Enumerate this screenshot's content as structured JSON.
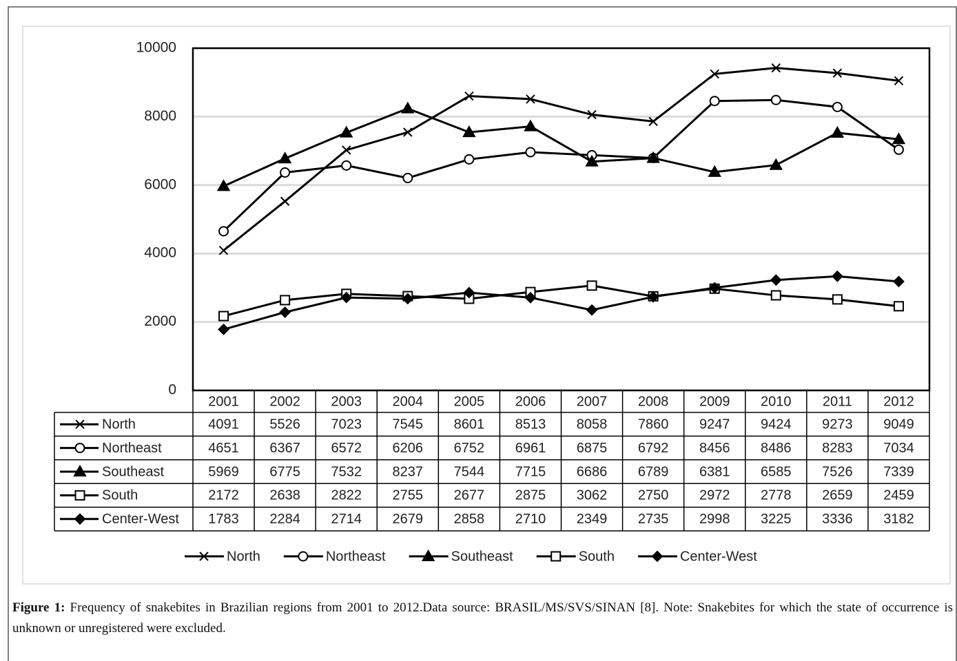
{
  "chart_data": {
    "type": "line",
    "categories": [
      "2001",
      "2002",
      "2003",
      "2004",
      "2005",
      "2006",
      "2007",
      "2008",
      "2009",
      "2010",
      "2011",
      "2012"
    ],
    "series": [
      {
        "name": "North",
        "color": "#000000",
        "marker": "x",
        "values": [
          4091,
          5526,
          7023,
          7545,
          8601,
          8513,
          8058,
          7860,
          9247,
          9424,
          9273,
          9049
        ]
      },
      {
        "name": "Northeast",
        "color": "#000000",
        "marker": "circle",
        "values": [
          4651,
          6367,
          6572,
          6206,
          6752,
          6961,
          6875,
          6792,
          8456,
          8486,
          8283,
          7034
        ]
      },
      {
        "name": "Southeast",
        "color": "#000000",
        "marker": "triangle",
        "values": [
          5969,
          6775,
          7532,
          8237,
          7544,
          7715,
          6686,
          6789,
          6381,
          6585,
          7526,
          7339
        ]
      },
      {
        "name": "South",
        "color": "#000000",
        "marker": "square",
        "values": [
          2172,
          2638,
          2822,
          2755,
          2677,
          2875,
          3062,
          2750,
          2972,
          2778,
          2659,
          2459
        ]
      },
      {
        "name": "Center-West",
        "color": "#000000",
        "marker": "diamond",
        "values": [
          1783,
          2284,
          2714,
          2679,
          2858,
          2710,
          2349,
          2735,
          2998,
          3225,
          3336,
          3182
        ]
      }
    ],
    "ylim": [
      0,
      10000
    ],
    "yticks": [
      0,
      2000,
      4000,
      6000,
      8000,
      10000
    ],
    "grid": true,
    "data_table": true,
    "legend": "bottom"
  },
  "caption": {
    "label": "Figure 1:",
    "text": "Frequency of snakebites in Brazilian regions from 2001 to 2012.Data source: BRASIL/MS/SVS/SINAN [8]. Note: Snakebites for which the state of occurrence is unknown or unregistered were excluded."
  }
}
